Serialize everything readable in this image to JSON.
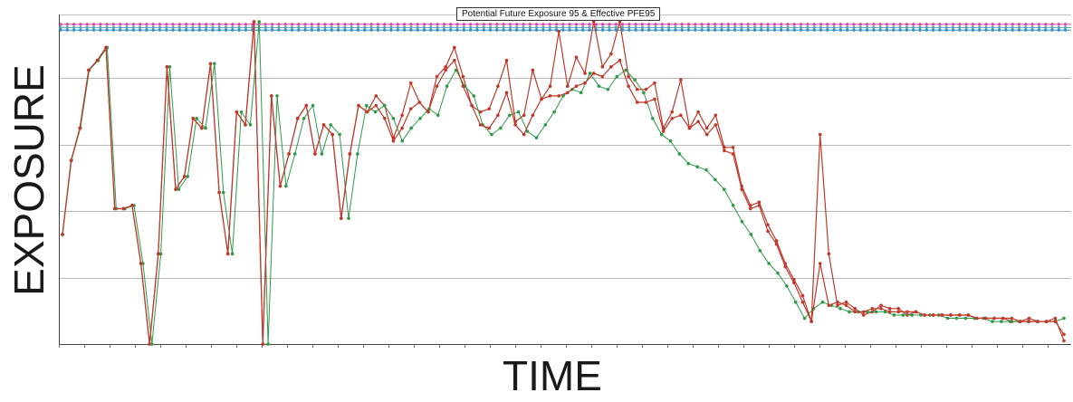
{
  "chart_data": {
    "type": "line",
    "title": "Potential Future Exposure 95 & Effective PFE95",
    "xlabel": "TIME",
    "ylabel": "EXPOSURE",
    "ylim": [
      0,
      100
    ],
    "grid": "horizontal",
    "limit_lines": [
      {
        "value": 99.2,
        "color": "#d04aa0"
      },
      {
        "value": 98.2,
        "color": "#5aa3b8"
      },
      {
        "value": 97.4,
        "color": "#2f8fc9"
      }
    ],
    "series": [
      {
        "color": "#c0392b",
        "values": [
          34,
          57,
          67,
          85,
          88,
          92,
          42,
          42,
          43,
          25,
          0,
          28,
          86,
          48,
          52,
          70,
          67,
          87,
          47,
          28,
          72,
          68,
          100,
          0,
          77,
          49,
          59,
          70,
          74,
          59,
          68,
          65,
          39,
          59,
          74,
          72,
          77,
          74,
          64,
          71,
          81,
          75,
          72,
          83,
          86,
          92,
          83,
          74,
          72,
          73,
          80,
          88,
          69,
          71,
          85,
          76,
          80,
          97,
          80,
          89,
          84,
          100,
          86,
          90,
          100,
          83,
          79,
          79,
          81,
          67,
          72,
          82,
          67,
          72,
          67,
          71,
          61,
          61,
          49,
          43,
          44,
          37,
          32,
          25,
          20,
          15,
          7,
          65,
          28,
          12,
          13,
          11,
          9,
          10,
          12,
          11,
          11,
          9,
          10,
          9,
          9,
          9,
          9,
          9,
          9,
          8,
          8,
          8,
          8,
          7,
          7,
          8,
          7,
          7,
          8,
          1
        ]
      },
      {
        "color": "#2f9a4a",
        "values": [
          34,
          57,
          67,
          85,
          88,
          92,
          42,
          42,
          43,
          25,
          0,
          28,
          86,
          48,
          52,
          70,
          67,
          87,
          47,
          28,
          72,
          68,
          100,
          0,
          77,
          49,
          59,
          70,
          74,
          59,
          68,
          65,
          39,
          59,
          74,
          72,
          74,
          70,
          63,
          67,
          70,
          73,
          71,
          80,
          85,
          80,
          77,
          68,
          65,
          67,
          71,
          72,
          66,
          64,
          68,
          72,
          77,
          79,
          78,
          84,
          80,
          79,
          83,
          85,
          82,
          78,
          70,
          65,
          63,
          59,
          56,
          55,
          54,
          51,
          48,
          43,
          38,
          34,
          29,
          25,
          22,
          18,
          13,
          8,
          11,
          13,
          12,
          11,
          10,
          10,
          10,
          10,
          10,
          9,
          9,
          9,
          9,
          9,
          9,
          8,
          8,
          8,
          8,
          8,
          7,
          7,
          7,
          7,
          7,
          7,
          7,
          7,
          8
        ]
      },
      {
        "color": "#c0392b",
        "values": [
          34,
          57,
          67,
          85,
          88,
          92,
          42,
          42,
          43,
          25,
          0,
          28,
          86,
          48,
          52,
          70,
          67,
          87,
          47,
          28,
          72,
          68,
          100,
          0,
          77,
          49,
          59,
          70,
          74,
          59,
          68,
          65,
          39,
          59,
          74,
          72,
          74,
          70,
          63,
          67,
          73,
          75,
          72,
          80,
          85,
          88,
          80,
          74,
          68,
          67,
          71,
          78,
          68,
          65,
          71,
          76,
          77,
          77,
          78,
          80,
          81,
          84,
          83,
          86,
          88,
          80,
          75,
          75,
          76,
          66,
          70,
          71,
          67,
          69,
          65,
          68,
          60,
          59,
          48,
          42,
          43,
          35,
          31,
          24,
          19,
          13,
          7,
          25,
          12,
          13,
          12,
          10,
          10,
          11,
          11,
          10,
          10,
          10,
          10,
          9,
          9,
          9,
          9,
          9,
          9,
          8,
          8,
          8,
          8,
          8,
          7,
          7,
          7,
          7,
          7,
          3
        ]
      }
    ]
  }
}
